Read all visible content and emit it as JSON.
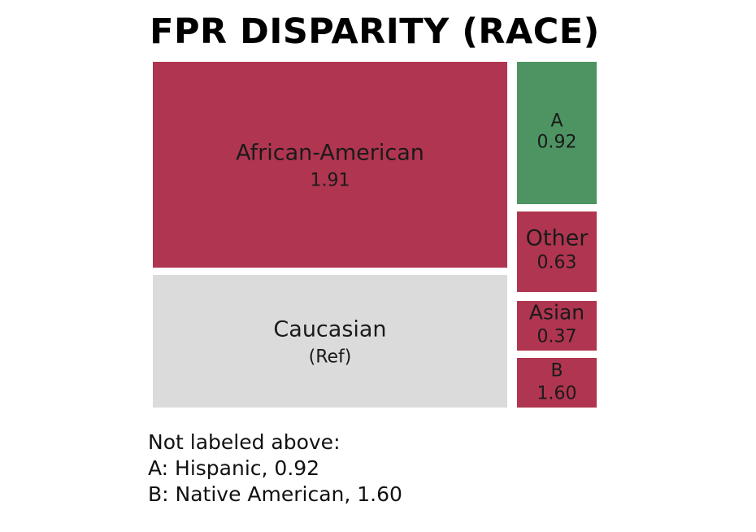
{
  "chart_data": {
    "type": "treemap",
    "title": "FPR DISPARITY (RACE)",
    "metric": "FPR disparity",
    "reference_group": "Caucasian",
    "colors": {
      "above_reference": "#b03550",
      "below_reference_ok": "#4d9462",
      "reference": "#dbdbdb"
    },
    "tiles": [
      {
        "key": "african-american",
        "name": "African-American",
        "label": "African-American",
        "value_text": "1.91",
        "value": 1.91,
        "color": "#b03550"
      },
      {
        "key": "caucasian",
        "name": "Caucasian",
        "label": "Caucasian",
        "value_text": "(Ref)",
        "value": 1.0,
        "color": "#dbdbdb"
      },
      {
        "key": "hispanic",
        "name": "Hispanic",
        "label": "A",
        "value_text": "0.92",
        "value": 0.92,
        "color": "#4d9462"
      },
      {
        "key": "other",
        "name": "Other",
        "label": "Other",
        "value_text": "0.63",
        "value": 0.63,
        "color": "#b03550"
      },
      {
        "key": "asian",
        "name": "Asian",
        "label": "Asian",
        "value_text": "0.37",
        "value": 0.37,
        "color": "#b03550"
      },
      {
        "key": "native-american",
        "name": "Native American",
        "label": "B",
        "value_text": "1.60",
        "value": 1.6,
        "color": "#b03550"
      }
    ],
    "footnote": {
      "heading": "Not labeled above:",
      "lines": [
        "A: Hispanic, 0.92",
        "B: Native American, 1.60"
      ]
    }
  }
}
